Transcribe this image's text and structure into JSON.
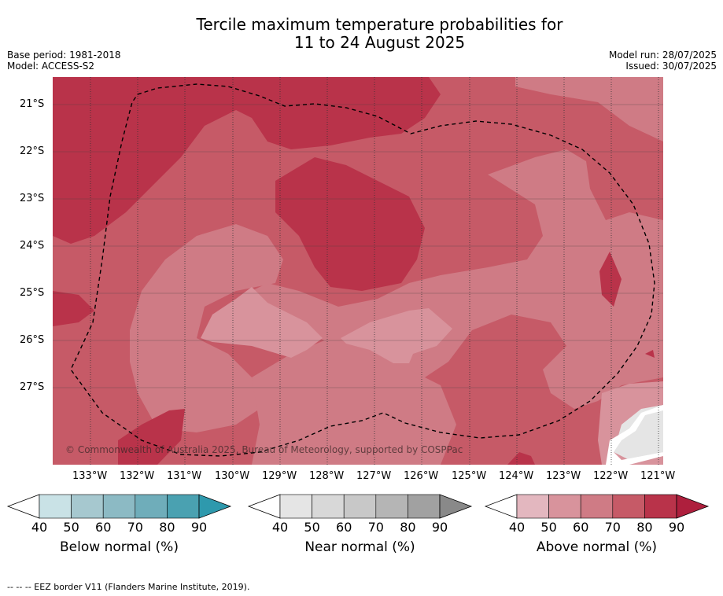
{
  "title_line1": "Tercile maximum temperature probabilities for",
  "title_line2": "11 to 24 August 2025",
  "meta_left": [
    "Base period: 1981-2018",
    "Model: ACCESS-S2"
  ],
  "meta_right": [
    "Model run: 28/07/2025",
    "Issued: 30/07/2025"
  ],
  "lat_labels": [
    "21°S",
    "22°S",
    "23°S",
    "24°S",
    "25°S",
    "26°S",
    "27°S"
  ],
  "lon_labels": [
    "133°W",
    "132°W",
    "131°W",
    "130°W",
    "129°W",
    "128°W",
    "127°W",
    "126°W",
    "125°W",
    "124°W",
    "123°W",
    "122°W",
    "121°W"
  ],
  "copyright": "© Commonwealth of Australia 2025, Bureau of Meteorology, supported by COSPPac",
  "footer": "-- -- -- EEZ border V11 (Flanders Marine Institute, 2019).",
  "colorbars": [
    {
      "label": "Below normal (%)",
      "ticks": [
        "40",
        "50",
        "60",
        "70",
        "80",
        "90"
      ],
      "colors": [
        "#c9e2e6",
        "#a6c8cf",
        "#8cbac4",
        "#6fadba",
        "#4aa1b1",
        "#2e99ad"
      ]
    },
    {
      "label": "Near normal (%)",
      "ticks": [
        "40",
        "50",
        "60",
        "70",
        "80",
        "90"
      ],
      "colors": [
        "#e5e5e5",
        "#d8d8d8",
        "#c8c8c8",
        "#b5b5b5",
        "#a1a1a1",
        "#898989"
      ]
    },
    {
      "label": "Above normal (%)",
      "ticks": [
        "40",
        "50",
        "60",
        "70",
        "80",
        "90"
      ],
      "colors": [
        "#e3b7bf",
        "#d8939c",
        "#cf7b85",
        "#c65a67",
        "#b9334a",
        "#ae1f3d"
      ]
    }
  ],
  "colors": {
    "above_60": "#cf7b85",
    "above_70": "#c65a67",
    "above_80": "#b9334a",
    "above_50": "#d8939c",
    "white": "#ffffff",
    "near_40": "#e5e5e5"
  }
}
